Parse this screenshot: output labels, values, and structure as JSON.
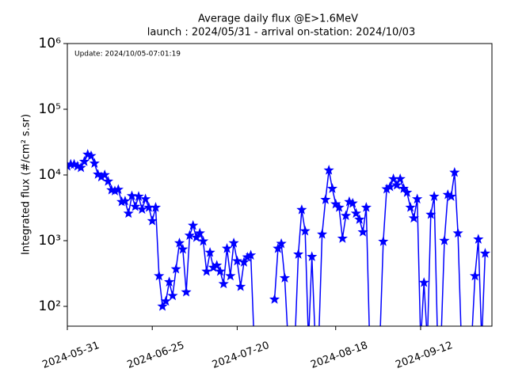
{
  "chart_data": {
    "type": "line",
    "title": "Average daily flux @E>1.6MeV",
    "subtitle": "launch : 2024/05/31 - arrival on-station: 2024/10/03",
    "annotation": "Update: 2024/10/05-07:01:19",
    "y_label": "Integrated flux (#/cm² s.sr)",
    "log_y": true,
    "marker": "star",
    "xlim": [
      "2024-05-31",
      "2024-10-03"
    ],
    "xticks": [
      "2024-05-31",
      "2024-06-25",
      "2024-07-20",
      "2024-08-18",
      "2024-09-12"
    ],
    "ylim": [
      50,
      1000000
    ],
    "yticks": [
      {
        "value": 100,
        "label": "10²"
      },
      {
        "value": 1000,
        "label": "10³"
      },
      {
        "value": 10000,
        "label": "10⁴"
      },
      {
        "value": 100000,
        "label": "10⁵"
      },
      {
        "value": 1000000,
        "label": "10⁶"
      }
    ],
    "x": [
      "2024-05-31",
      "2024-06-01",
      "2024-06-02",
      "2024-06-03",
      "2024-06-04",
      "2024-06-05",
      "2024-06-06",
      "2024-06-07",
      "2024-06-08",
      "2024-06-09",
      "2024-06-10",
      "2024-06-11",
      "2024-06-12",
      "2024-06-13",
      "2024-06-14",
      "2024-06-15",
      "2024-06-16",
      "2024-06-17",
      "2024-06-18",
      "2024-06-19",
      "2024-06-20",
      "2024-06-21",
      "2024-06-22",
      "2024-06-23",
      "2024-06-24",
      "2024-06-25",
      "2024-06-26",
      "2024-06-27",
      "2024-06-28",
      "2024-06-29",
      "2024-06-30",
      "2024-07-01",
      "2024-07-02",
      "2024-07-03",
      "2024-07-04",
      "2024-07-05",
      "2024-07-06",
      "2024-07-07",
      "2024-07-08",
      "2024-07-09",
      "2024-07-10",
      "2024-07-11",
      "2024-07-12",
      "2024-07-13",
      "2024-07-14",
      "2024-07-15",
      "2024-07-16",
      "2024-07-17",
      "2024-07-18",
      "2024-07-19",
      "2024-07-20",
      "2024-07-21",
      "2024-07-22",
      "2024-07-23",
      "2024-07-24",
      "2024-07-25",
      "2024-07-26",
      "2024-07-27",
      "2024-07-28",
      "2024-07-29",
      "2024-07-30",
      "2024-07-31",
      "2024-08-01",
      "2024-08-02",
      "2024-08-03",
      "2024-08-04",
      "2024-08-05",
      "2024-08-06",
      "2024-08-07",
      "2024-08-08",
      "2024-08-09",
      "2024-08-10",
      "2024-08-11",
      "2024-08-12",
      "2024-08-13",
      "2024-08-14",
      "2024-08-15",
      "2024-08-16",
      "2024-08-17",
      "2024-08-18",
      "2024-08-19",
      "2024-08-20",
      "2024-08-21",
      "2024-08-22",
      "2024-08-23",
      "2024-08-24",
      "2024-08-25",
      "2024-08-26",
      "2024-08-27",
      "2024-08-28",
      "2024-08-29",
      "2024-08-30",
      "2024-08-31",
      "2024-09-01",
      "2024-09-02",
      "2024-09-03",
      "2024-09-04",
      "2024-09-05",
      "2024-09-06",
      "2024-09-07",
      "2024-09-08",
      "2024-09-09",
      "2024-09-10",
      "2024-09-11",
      "2024-09-12",
      "2024-09-13",
      "2024-09-14",
      "2024-09-15",
      "2024-09-16",
      "2024-09-17",
      "2024-09-18",
      "2024-09-19",
      "2024-09-20",
      "2024-09-21",
      "2024-09-22",
      "2024-09-23",
      "2024-09-24",
      "2024-09-25",
      "2024-09-26",
      "2024-09-27",
      "2024-09-28",
      "2024-09-29",
      "2024-09-30",
      "2024-10-01"
    ],
    "series": [
      {
        "color": "#0000ff",
        "values": [
          13600,
          14500,
          14500,
          13600,
          12900,
          16000,
          20500,
          19500,
          15000,
          10200,
          9300,
          10000,
          8000,
          5900,
          5700,
          6000,
          3900,
          4000,
          2600,
          4800,
          3300,
          4700,
          3000,
          4300,
          3200,
          2000,
          3200,
          290,
          100,
          120,
          235,
          145,
          370,
          920,
          740,
          165,
          1200,
          1700,
          1120,
          1300,
          980,
          340,
          660,
          390,
          420,
          340,
          220,
          760,
          290,
          920,
          490,
          200,
          470,
          560,
          600,
          0,
          null,
          null,
          null,
          null,
          null,
          128,
          760,
          900,
          270,
          0,
          null,
          0,
          620,
          2950,
          1400,
          0,
          570,
          0,
          0,
          1250,
          4200,
          11800,
          6200,
          3600,
          3200,
          1080,
          2400,
          3900,
          3700,
          2600,
          2100,
          1350,
          3200,
          0,
          null,
          null,
          0,
          970,
          6100,
          6600,
          8700,
          7000,
          8700,
          6200,
          5400,
          3200,
          2200,
          4300,
          0,
          230,
          0,
          2500,
          4700,
          0,
          0,
          1000,
          5000,
          4700,
          10900,
          1300,
          0,
          null,
          null,
          0,
          290,
          1050,
          0,
          640
        ]
      }
    ]
  }
}
